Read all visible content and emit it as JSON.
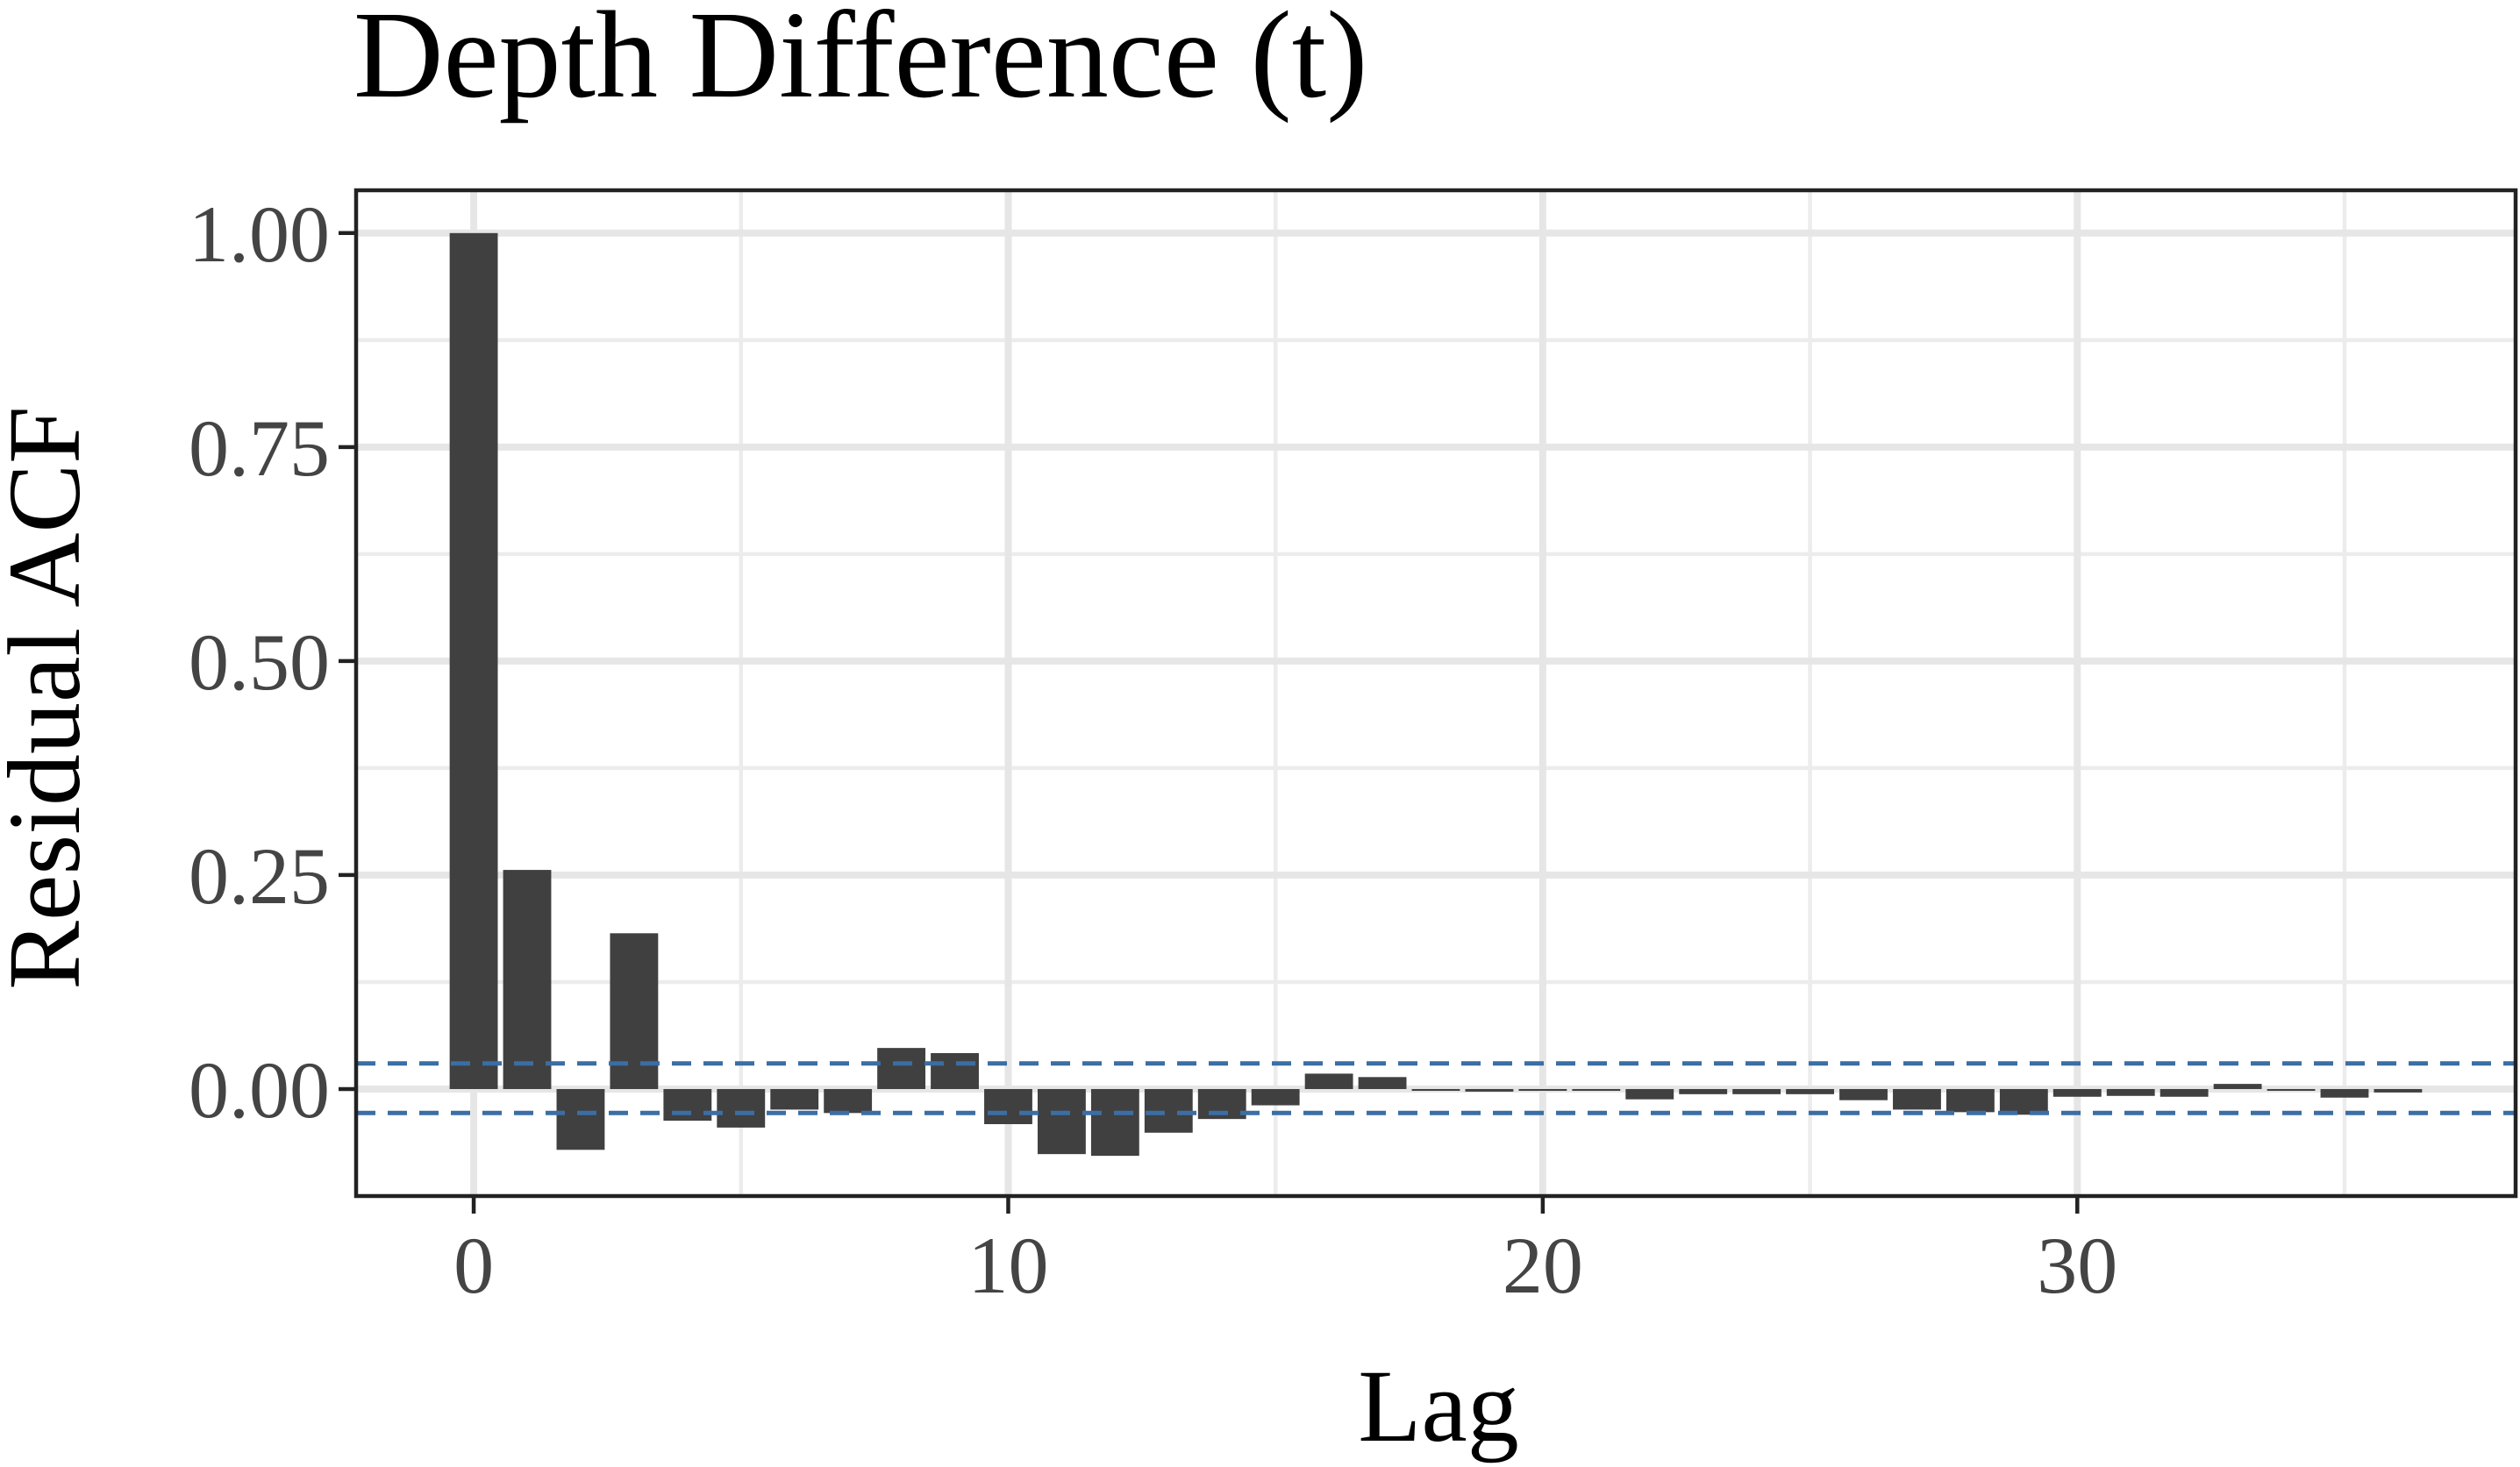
{
  "chart_data": {
    "type": "bar",
    "title": "Depth Difference (t)",
    "xlabel": "Lag",
    "ylabel": "Residual ACF",
    "xlim": [
      -2.2,
      38.2
    ],
    "ylim": [
      -0.125,
      1.05
    ],
    "xticks": [
      0,
      10,
      20,
      30
    ],
    "xtick_labels": [
      "0",
      "10",
      "20",
      "30"
    ],
    "yticks": [
      0.0,
      0.25,
      0.5,
      0.75,
      1.0
    ],
    "ytick_labels": [
      "0.00",
      "0.25",
      "0.50",
      "0.75",
      "1.00"
    ],
    "grid": true,
    "confidence_band": [
      -0.028,
      0.03
    ],
    "colors": {
      "bar": "#404040",
      "confidence_band": "#3a6ea5",
      "grid": "#e6e6e6",
      "border": "#222222"
    },
    "lags": [
      0,
      1,
      2,
      3,
      4,
      5,
      6,
      7,
      8,
      9,
      10,
      11,
      12,
      13,
      14,
      15,
      16,
      17,
      18,
      19,
      20,
      21,
      22,
      23,
      24,
      25,
      26,
      27,
      28,
      29,
      30,
      31,
      32,
      33,
      34,
      35,
      36
    ],
    "values": [
      1.0,
      0.256,
      -0.071,
      0.182,
      -0.037,
      -0.045,
      -0.024,
      -0.028,
      0.048,
      0.042,
      -0.041,
      -0.076,
      -0.078,
      -0.051,
      -0.035,
      -0.019,
      0.018,
      0.014,
      -0.001,
      -0.003,
      -0.002,
      -0.001,
      -0.012,
      -0.006,
      -0.006,
      -0.006,
      -0.013,
      -0.024,
      -0.027,
      -0.03,
      -0.009,
      -0.008,
      -0.009,
      0.006,
      -0.001,
      -0.01,
      -0.004
    ]
  }
}
